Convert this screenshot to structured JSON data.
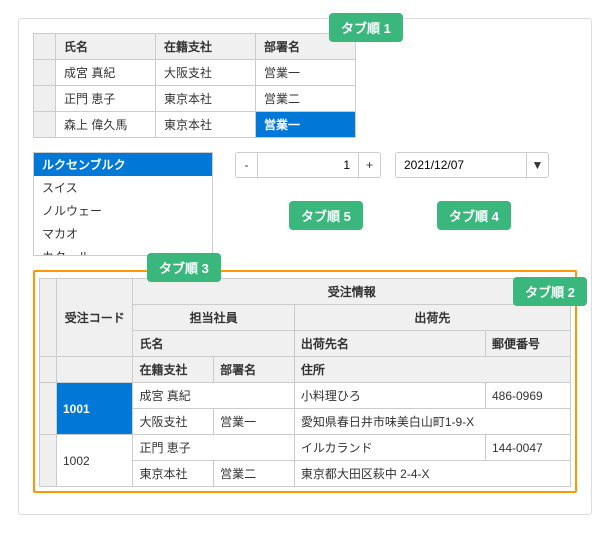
{
  "topGrid": {
    "headers": [
      "氏名",
      "在籍支社",
      "部署名"
    ],
    "rows": [
      {
        "name": "成宮 真紀",
        "branch": "大阪支社",
        "dept": "営業一",
        "deptSelected": false
      },
      {
        "name": "正門 恵子",
        "branch": "東京本社",
        "dept": "営業二",
        "deptSelected": false
      },
      {
        "name": "森上 偉久馬",
        "branch": "東京本社",
        "dept": "営業一",
        "deptSelected": true
      }
    ]
  },
  "listbox": {
    "items": [
      "ルクセンブルク",
      "スイス",
      "ノルウェー",
      "マカオ",
      "カタール"
    ],
    "selectedIndex": 0
  },
  "spinner": {
    "minus": "-",
    "plus": "+",
    "value": "1"
  },
  "datepicker": {
    "value": "2021/12/07",
    "dropGlyph": "▼"
  },
  "bottomGrid": {
    "orderCodeHeader": "受注コード",
    "orderInfoHeader": "受注情報",
    "staffHeader": "担当社員",
    "shipHeader": "出荷先",
    "nameHeader": "氏名",
    "shipNameHeader": "出荷先名",
    "postalHeader": "郵便番号",
    "branchHeader": "在籍支社",
    "deptHeader": "部署名",
    "addressHeader": "住所",
    "rows": [
      {
        "code": "1001",
        "name": "成宮 真紀",
        "branch": "大阪支社",
        "dept": "営業一",
        "shipName": "小料理ひろ",
        "postal": "486-0969",
        "address": "愛知県春日井市味美白山町1-9-X",
        "selected": true
      },
      {
        "code": "1002",
        "name": "正門 恵子",
        "branch": "東京本社",
        "dept": "営業二",
        "shipName": "イルカランド",
        "postal": "144-0047",
        "address": "東京都大田区萩中 2-4-X",
        "selected": false
      }
    ]
  },
  "badges": {
    "b1": "タブ順 1",
    "b2": "タブ順 2",
    "b3": "タブ順 3",
    "b4": "タブ順 4",
    "b5": "タブ順 5"
  }
}
